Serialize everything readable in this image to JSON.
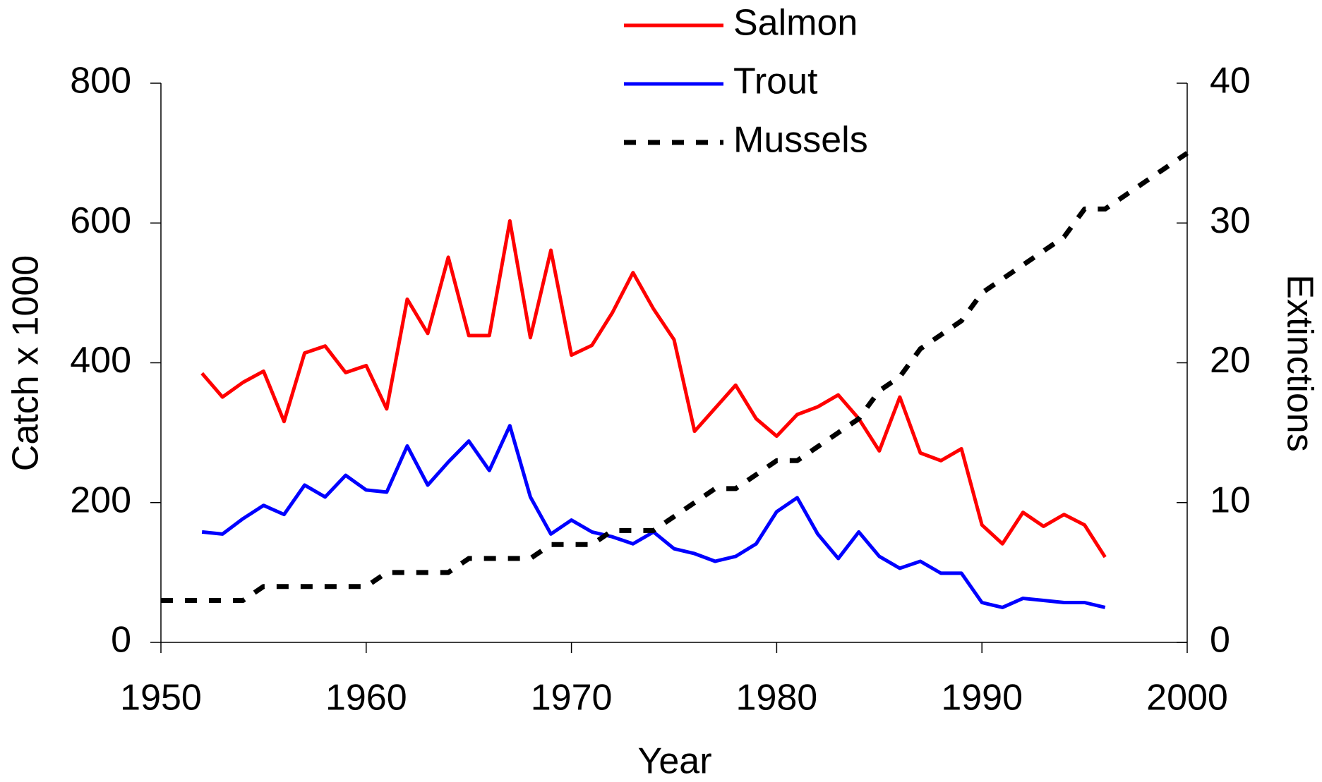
{
  "chart_data": {
    "type": "line",
    "x_label": "Year",
    "y_label": "Catch x 1000",
    "y2_label": "Extinctions",
    "x": [
      1950,
      1951,
      1952,
      1953,
      1954,
      1955,
      1956,
      1957,
      1958,
      1959,
      1960,
      1961,
      1962,
      1963,
      1964,
      1965,
      1966,
      1967,
      1968,
      1969,
      1970,
      1971,
      1972,
      1973,
      1974,
      1975,
      1976,
      1977,
      1978,
      1979,
      1980,
      1981,
      1982,
      1983,
      1984,
      1985,
      1986,
      1987,
      1988,
      1989,
      1990,
      1991,
      1992,
      1993,
      1994,
      1995,
      1996,
      1997,
      1998,
      1999,
      2000
    ],
    "xlim": [
      1950,
      2000
    ],
    "xticks": [
      1950,
      1960,
      1970,
      1980,
      1990,
      2000
    ],
    "ylim": [
      0,
      800
    ],
    "yticks": [
      0,
      200,
      400,
      600,
      800
    ],
    "y2lim": [
      0,
      40
    ],
    "y2ticks": [
      0,
      10,
      20,
      30,
      40
    ],
    "legend": "top",
    "series": [
      {
        "name": "Salmon",
        "color": "#ff0000",
        "style": "solid",
        "values": [
          null,
          null,
          385,
          351,
          372,
          388,
          316,
          414,
          424,
          386,
          396,
          334,
          491,
          442,
          551,
          439,
          439,
          603,
          436,
          561,
          411,
          425,
          472,
          529,
          477,
          433,
          302,
          335,
          368,
          320,
          295,
          326,
          337,
          354,
          320,
          274,
          351,
          271,
          260,
          277,
          168,
          141,
          186,
          166,
          183,
          168,
          122,
          null,
          null,
          null,
          null
        ]
      },
      {
        "name": "Trout",
        "color": "#0000ff",
        "style": "solid",
        "values": [
          null,
          null,
          158,
          155,
          177,
          196,
          183,
          225,
          208,
          239,
          218,
          215,
          281,
          225,
          258,
          288,
          246,
          310,
          208,
          155,
          175,
          158,
          151,
          141,
          158,
          134,
          127,
          116,
          123,
          141,
          187,
          207,
          155,
          120,
          158,
          123,
          106,
          116,
          99,
          99,
          57,
          50,
          63,
          60,
          57,
          57,
          50,
          null,
          null,
          null,
          null
        ]
      },
      {
        "name": "Mussels",
        "color": "#000000",
        "style": "dashed",
        "axis": "y2",
        "values": [
          3,
          3,
          3,
          3,
          3,
          4,
          4,
          4,
          4,
          4,
          4,
          5,
          5,
          5,
          5,
          6,
          6,
          6,
          6,
          7,
          7,
          7,
          8,
          8,
          8,
          9,
          10,
          11,
          11,
          12,
          13,
          13,
          14,
          15,
          16,
          18,
          19,
          21,
          22,
          23,
          25,
          26,
          27,
          28,
          29,
          31,
          31,
          32,
          33,
          34,
          35
        ]
      }
    ]
  }
}
